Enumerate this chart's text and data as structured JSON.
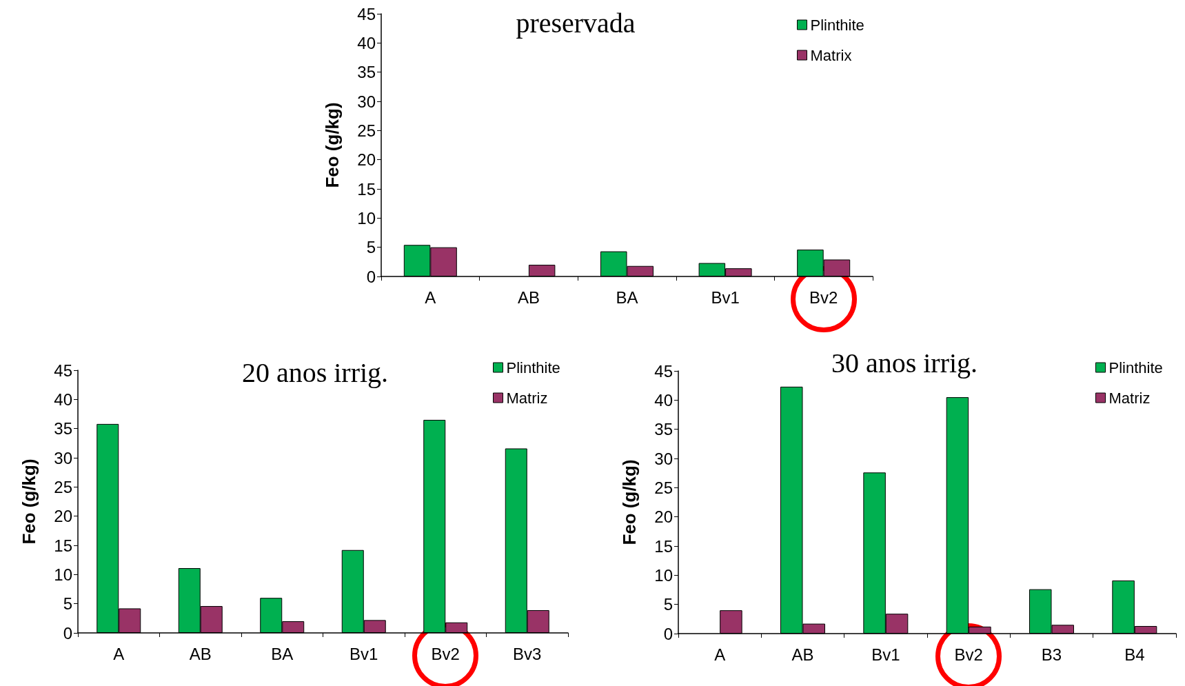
{
  "chart_data": [
    {
      "type": "bar",
      "title": "preservada",
      "ylabel": "Feo (g/kg)",
      "categories": [
        "A",
        "AB",
        "BA",
        "Bv1",
        "Bv2"
      ],
      "series": [
        {
          "name": "Plinthite",
          "color": "#00b050",
          "values": [
            5.4,
            null,
            4.3,
            2.3,
            4.6
          ]
        },
        {
          "name": "Matrix",
          "color": "#993366",
          "values": [
            5.0,
            2.0,
            1.8,
            1.4,
            2.9
          ]
        }
      ],
      "ylim": [
        0,
        45
      ],
      "yticks": [
        0,
        5,
        10,
        15,
        20,
        25,
        30,
        35,
        40,
        45
      ],
      "grid": false,
      "legend": "top right"
    },
    {
      "type": "bar",
      "title": "20 anos irrig.",
      "ylabel": "Feo (g/kg)",
      "categories": [
        "A",
        "AB",
        "BA",
        "Bv1",
        "Bv2",
        "Bv3"
      ],
      "series": [
        {
          "name": "Plinthite",
          "color": "#00b050",
          "values": [
            35.8,
            11.1,
            6.0,
            14.2,
            36.5,
            31.6
          ]
        },
        {
          "name": "Matriz",
          "color": "#993366",
          "values": [
            4.2,
            4.6,
            2.0,
            2.2,
            1.8,
            3.9
          ]
        }
      ],
      "ylim": [
        0,
        45
      ],
      "yticks": [
        0,
        5,
        10,
        15,
        20,
        25,
        30,
        35,
        40,
        45
      ],
      "grid": false,
      "legend": "top right"
    },
    {
      "type": "bar",
      "title": "30 anos irrig.",
      "ylabel": "Feo (g/kg)",
      "categories": [
        "A",
        "AB",
        "Bv1",
        "Bv2",
        "B3",
        "B4"
      ],
      "series": [
        {
          "name": "Plinthite",
          "color": "#00b050",
          "values": [
            null,
            42.3,
            27.6,
            40.5,
            7.6,
            9.1
          ]
        },
        {
          "name": "Matriz",
          "color": "#993366",
          "values": [
            4.0,
            1.7,
            3.4,
            1.2,
            1.5,
            1.3
          ]
        }
      ],
      "ylim": [
        0,
        45
      ],
      "yticks": [
        0,
        5,
        10,
        15,
        20,
        25,
        30,
        35,
        40,
        45
      ],
      "grid": false,
      "legend": "top right"
    }
  ]
}
